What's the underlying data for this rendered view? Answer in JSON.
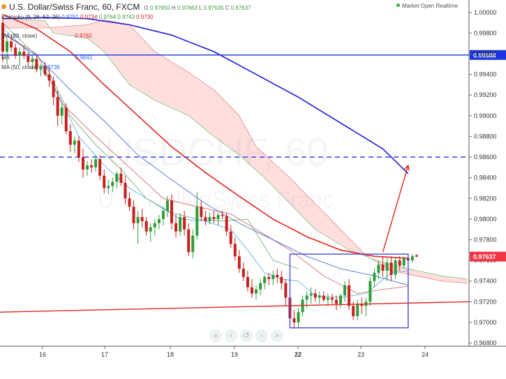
{
  "header": {
    "title": "U.S. Dollar/Swiss Franc, 60, FXCM",
    "ohlc": [
      {
        "label": "O",
        "value": "0.97650"
      },
      {
        "label": "H",
        "value": "0.97663"
      },
      {
        "label": "L",
        "value": "0.97635"
      },
      {
        "label": "C",
        "value": "0.97637"
      }
    ],
    "status": "Market Open Realtime"
  },
  "indicators": [
    {
      "name": "Ichimoku (9, 26, 52, 26)",
      "values": [
        "0.9751",
        "0.9734",
        "0.9764",
        "0.9743",
        "0.9730"
      ],
      "colors": [
        "#2962ff",
        "#d22",
        "#3c9c3c",
        "#3c9c3c",
        "#d22"
      ]
    },
    {
      "name": "MA (89, close)",
      "values": [
        "0.9762"
      ],
      "colors": [
        "#d22"
      ]
    },
    {
      "name": "MA",
      "values": [
        "0.9841"
      ],
      "colors": [
        "#2962ff"
      ]
    },
    {
      "name": "MA (50, close)",
      "values": [
        "0.9736"
      ],
      "colors": [
        "#2962ff"
      ]
    }
  ],
  "watermark": {
    "symbol": "USDCHF, 60",
    "description": "U.S. Dollar/Swiss Franc"
  },
  "nav_buttons": [
    "«",
    "‹",
    "↺",
    "›",
    "»"
  ],
  "chart_data": {
    "type": "candlestick",
    "y_axis": {
      "ylim": [
        0.9677,
        1.0012
      ],
      "ticks": [
        "0.96800",
        "0.97000",
        "0.97200",
        "0.97400",
        "0.97600",
        "0.97800",
        "0.98000",
        "0.98200",
        "0.98400",
        "0.98600",
        "0.98800",
        "0.99000",
        "0.99200",
        "0.99400",
        "0.99600",
        "0.99800",
        "1.00000"
      ]
    },
    "x_axis": {
      "ticks": [
        "16",
        "17",
        "18",
        "19",
        "22",
        "23",
        "24"
      ]
    },
    "last_price": {
      "value": 0.97637,
      "label": "0.97637",
      "color": "#f23645"
    },
    "horizontal_levels": [
      {
        "value": 0.99588,
        "label": "0.99588",
        "style": "solid",
        "color": "#1a33e0"
      },
      {
        "value": 0.986,
        "label": "",
        "style": "dashed",
        "color": "#1a33e0"
      }
    ],
    "trendline": {
      "from": [
        0,
        0.971
      ],
      "to": [
        110,
        0.972
      ],
      "color": "#e0261f"
    },
    "rectangle": {
      "x": [
        68,
        96
      ],
      "y": [
        0.96948,
        0.97661
      ],
      "color": "#4a4ad6"
    },
    "arrow": {
      "from": [
        90,
        0.9768
      ],
      "to": [
        96,
        0.9852
      ],
      "color": "#e0261f"
    },
    "candles": [
      [
        0.999,
        0.9996,
        0.9952,
        0.9962
      ],
      [
        0.9962,
        0.9976,
        0.995,
        0.9972
      ],
      [
        0.9972,
        0.9978,
        0.9962,
        0.9966
      ],
      [
        0.9966,
        0.997,
        0.9955,
        0.9958
      ],
      [
        0.9958,
        0.9966,
        0.9948,
        0.9962
      ],
      [
        0.9962,
        0.9968,
        0.9955,
        0.9958
      ],
      [
        0.9958,
        0.9962,
        0.9948,
        0.9952
      ],
      [
        0.9952,
        0.9958,
        0.9945,
        0.9955
      ],
      [
        0.9955,
        0.9958,
        0.9942,
        0.9945
      ],
      [
        0.9945,
        0.995,
        0.9938,
        0.9948
      ],
      [
        0.9948,
        0.9952,
        0.9938,
        0.994
      ],
      [
        0.994,
        0.9945,
        0.9928,
        0.9934
      ],
      [
        0.9934,
        0.9938,
        0.991,
        0.9918
      ],
      [
        0.9918,
        0.9924,
        0.989,
        0.99
      ],
      [
        0.99,
        0.9912,
        0.9892,
        0.9908
      ],
      [
        0.9908,
        0.9912,
        0.9882,
        0.9885
      ],
      [
        0.9885,
        0.9892,
        0.9865,
        0.9872
      ],
      [
        0.9872,
        0.988,
        0.9864,
        0.9876
      ],
      [
        0.9876,
        0.988,
        0.9855,
        0.986
      ],
      [
        0.986,
        0.9868,
        0.984,
        0.9848
      ],
      [
        0.9848,
        0.9856,
        0.9842,
        0.9852
      ],
      [
        0.9852,
        0.9858,
        0.9845,
        0.985
      ],
      [
        0.985,
        0.9862,
        0.9846,
        0.9858
      ],
      [
        0.9858,
        0.9862,
        0.9838,
        0.9842
      ],
      [
        0.9842,
        0.9848,
        0.9825,
        0.983
      ],
      [
        0.983,
        0.9838,
        0.9824,
        0.9832
      ],
      [
        0.9832,
        0.984,
        0.9826,
        0.9836
      ],
      [
        0.9836,
        0.9846,
        0.983,
        0.9844
      ],
      [
        0.9844,
        0.985,
        0.9832,
        0.9835
      ],
      [
        0.9835,
        0.9842,
        0.9814,
        0.982
      ],
      [
        0.982,
        0.9826,
        0.9808,
        0.9812
      ],
      [
        0.9812,
        0.9818,
        0.979,
        0.9796
      ],
      [
        0.9796,
        0.9808,
        0.9776,
        0.9802
      ],
      [
        0.9802,
        0.981,
        0.9792,
        0.9798
      ],
      [
        0.9798,
        0.9802,
        0.9784,
        0.9788
      ],
      [
        0.9788,
        0.9796,
        0.9778,
        0.9792
      ],
      [
        0.9792,
        0.98,
        0.9784,
        0.9796
      ],
      [
        0.9796,
        0.9804,
        0.979,
        0.98
      ],
      [
        0.98,
        0.9812,
        0.9794,
        0.9808
      ],
      [
        0.9808,
        0.9822,
        0.9802,
        0.9818
      ],
      [
        0.9818,
        0.9824,
        0.979,
        0.9796
      ],
      [
        0.9796,
        0.9804,
        0.9782,
        0.9788
      ],
      [
        0.9788,
        0.9806,
        0.9784,
        0.9802
      ],
      [
        0.9802,
        0.9808,
        0.9784,
        0.979
      ],
      [
        0.979,
        0.9796,
        0.9764,
        0.9768
      ],
      [
        0.9768,
        0.979,
        0.9762,
        0.9784
      ],
      [
        0.9784,
        0.9826,
        0.978,
        0.9812
      ],
      [
        0.9812,
        0.9818,
        0.9798,
        0.9802
      ],
      [
        0.9802,
        0.9808,
        0.9794,
        0.9798
      ],
      [
        0.9798,
        0.9806,
        0.9795,
        0.9802
      ],
      [
        0.9802,
        0.9808,
        0.9796,
        0.98
      ],
      [
        0.98,
        0.9806,
        0.9794,
        0.9804
      ],
      [
        0.9804,
        0.9808,
        0.98,
        0.9803
      ],
      [
        0.9803,
        0.9806,
        0.9784,
        0.9788
      ],
      [
        0.9788,
        0.9794,
        0.9772,
        0.9776
      ],
      [
        0.9776,
        0.9782,
        0.976,
        0.9764
      ],
      [
        0.9764,
        0.977,
        0.9748,
        0.9752
      ],
      [
        0.9752,
        0.9758,
        0.974,
        0.9744
      ],
      [
        0.9744,
        0.975,
        0.973,
        0.9734
      ],
      [
        0.9734,
        0.9742,
        0.9724,
        0.9728
      ],
      [
        0.9728,
        0.9736,
        0.9722,
        0.9732
      ],
      [
        0.9732,
        0.9742,
        0.9726,
        0.9738
      ],
      [
        0.9738,
        0.9746,
        0.9732,
        0.9744
      ],
      [
        0.9744,
        0.9748,
        0.9736,
        0.9742
      ],
      [
        0.9742,
        0.975,
        0.9736,
        0.9746
      ],
      [
        0.9746,
        0.9752,
        0.9738,
        0.9744
      ],
      [
        0.9744,
        0.975,
        0.9732,
        0.9738
      ],
      [
        0.9738,
        0.9742,
        0.9716,
        0.9724
      ],
      [
        0.9724,
        0.973,
        0.9698,
        0.9704
      ],
      [
        0.9704,
        0.9712,
        0.9694,
        0.97
      ],
      [
        0.97,
        0.9714,
        0.9694,
        0.971
      ],
      [
        0.971,
        0.9726,
        0.9706,
        0.9722
      ],
      [
        0.9722,
        0.973,
        0.9714,
        0.9726
      ],
      [
        0.9726,
        0.9734,
        0.9718,
        0.9728
      ],
      [
        0.9728,
        0.9732,
        0.972,
        0.9724
      ],
      [
        0.9724,
        0.973,
        0.9718,
        0.9726
      ],
      [
        0.9726,
        0.973,
        0.972,
        0.9722
      ],
      [
        0.9722,
        0.9728,
        0.9716,
        0.9724
      ],
      [
        0.9724,
        0.9728,
        0.9718,
        0.9722
      ],
      [
        0.9722,
        0.9726,
        0.9712,
        0.9718
      ],
      [
        0.9718,
        0.9728,
        0.9714,
        0.9726
      ],
      [
        0.9726,
        0.974,
        0.972,
        0.9736
      ],
      [
        0.9736,
        0.9742,
        0.9712,
        0.9716
      ],
      [
        0.9716,
        0.972,
        0.9702,
        0.9706
      ],
      [
        0.9706,
        0.9722,
        0.9702,
        0.9718
      ],
      [
        0.9718,
        0.9724,
        0.9708,
        0.9716
      ],
      [
        0.9716,
        0.9724,
        0.9706,
        0.972
      ],
      [
        0.972,
        0.9744,
        0.9716,
        0.974
      ],
      [
        0.974,
        0.9752,
        0.9734,
        0.9748
      ],
      [
        0.9748,
        0.976,
        0.9742,
        0.9756
      ],
      [
        0.9756,
        0.9764,
        0.9744,
        0.975
      ],
      [
        0.975,
        0.9762,
        0.974,
        0.9758
      ],
      [
        0.9758,
        0.9764,
        0.974,
        0.9746
      ],
      [
        0.9746,
        0.9762,
        0.9742,
        0.976
      ],
      [
        0.976,
        0.9764,
        0.975,
        0.9755
      ],
      [
        0.9755,
        0.9764,
        0.9752,
        0.9762
      ],
      [
        0.9762,
        0.9765,
        0.9756,
        0.976
      ],
      [
        0.976,
        0.9766,
        0.9758,
        0.9764
      ],
      [
        0.9765,
        0.9766,
        0.9763,
        0.97637
      ]
    ],
    "ma_red": [
      [
        0,
        0.9998
      ],
      [
        8,
        0.9984
      ],
      [
        16,
        0.9962
      ],
      [
        24,
        0.993
      ],
      [
        32,
        0.99
      ],
      [
        40,
        0.987
      ],
      [
        48,
        0.9845
      ],
      [
        56,
        0.9822
      ],
      [
        64,
        0.98
      ],
      [
        72,
        0.9783
      ],
      [
        80,
        0.977
      ],
      [
        88,
        0.9764
      ],
      [
        96,
        0.9762
      ]
    ],
    "ma_blue": [
      [
        0,
        0.9994
      ],
      [
        10,
        0.9995
      ],
      [
        20,
        0.9994
      ],
      [
        30,
        0.9988
      ],
      [
        40,
        0.9978
      ],
      [
        50,
        0.9962
      ],
      [
        60,
        0.994
      ],
      [
        70,
        0.9918
      ],
      [
        80,
        0.9893
      ],
      [
        90,
        0.9868
      ],
      [
        96,
        0.9844
      ]
    ],
    "ma_blue_thin": [
      [
        0,
        0.998
      ],
      [
        8,
        0.9958
      ],
      [
        16,
        0.9925
      ],
      [
        24,
        0.9895
      ],
      [
        32,
        0.9862
      ],
      [
        40,
        0.9838
      ],
      [
        48,
        0.9815
      ],
      [
        56,
        0.9796
      ],
      [
        64,
        0.978
      ],
      [
        72,
        0.9764
      ],
      [
        80,
        0.9752
      ],
      [
        88,
        0.9745
      ],
      [
        96,
        0.9736
      ]
    ],
    "cloud_a": [
      [
        0,
        0.9994
      ],
      [
        10,
        0.9992
      ],
      [
        12,
        0.998
      ],
      [
        20,
        0.9975
      ],
      [
        24,
        0.9962
      ],
      [
        30,
        0.993
      ],
      [
        36,
        0.9915
      ],
      [
        44,
        0.99
      ],
      [
        50,
        0.988
      ],
      [
        56,
        0.9862
      ],
      [
        62,
        0.984
      ],
      [
        68,
        0.9815
      ],
      [
        74,
        0.979
      ],
      [
        82,
        0.977
      ],
      [
        90,
        0.9758
      ],
      [
        96,
        0.9752
      ],
      [
        104,
        0.9745
      ],
      [
        110,
        0.9742
      ]
    ],
    "cloud_b": [
      [
        0,
        0.9985
      ],
      [
        10,
        0.9985
      ],
      [
        20,
        0.9988
      ],
      [
        24,
        0.9993
      ],
      [
        30,
        0.9988
      ],
      [
        36,
        0.9962
      ],
      [
        44,
        0.9942
      ],
      [
        50,
        0.9925
      ],
      [
        56,
        0.99
      ],
      [
        60,
        0.987
      ],
      [
        64,
        0.9855
      ],
      [
        68,
        0.984
      ],
      [
        74,
        0.9815
      ],
      [
        80,
        0.979
      ],
      [
        86,
        0.9765
      ],
      [
        92,
        0.975
      ],
      [
        98,
        0.9745
      ],
      [
        104,
        0.974
      ],
      [
        110,
        0.9738
      ]
    ],
    "tenkan": [
      [
        0,
        0.9985
      ],
      [
        6,
        0.9962
      ],
      [
        12,
        0.993
      ],
      [
        18,
        0.988
      ],
      [
        24,
        0.9852
      ],
      [
        30,
        0.983
      ],
      [
        36,
        0.9815
      ],
      [
        42,
        0.98
      ],
      [
        48,
        0.9798
      ],
      [
        54,
        0.979
      ],
      [
        58,
        0.977
      ],
      [
        62,
        0.9748
      ],
      [
        66,
        0.9742
      ],
      [
        70,
        0.974
      ],
      [
        74,
        0.9726
      ],
      [
        80,
        0.9724
      ],
      [
        86,
        0.9728
      ],
      [
        92,
        0.9748
      ],
      [
        96,
        0.975
      ]
    ],
    "kijun": [
      [
        0,
        0.998
      ],
      [
        8,
        0.996
      ],
      [
        14,
        0.9912
      ],
      [
        22,
        0.988
      ],
      [
        30,
        0.985
      ],
      [
        38,
        0.982
      ],
      [
        46,
        0.9812
      ],
      [
        54,
        0.9805
      ],
      [
        60,
        0.979
      ],
      [
        68,
        0.977
      ],
      [
        76,
        0.9745
      ],
      [
        84,
        0.9728
      ],
      [
        90,
        0.9732
      ],
      [
        96,
        0.9735
      ]
    ],
    "chikou": [
      [
        0,
        0.999
      ],
      [
        10,
        0.995
      ],
      [
        16,
        0.99
      ],
      [
        22,
        0.9872
      ],
      [
        28,
        0.9848
      ],
      [
        34,
        0.982
      ],
      [
        40,
        0.9806
      ],
      [
        46,
        0.98
      ],
      [
        52,
        0.9798
      ],
      [
        58,
        0.98
      ],
      [
        64,
        0.976
      ],
      [
        70,
        0.9752
      ]
    ]
  }
}
